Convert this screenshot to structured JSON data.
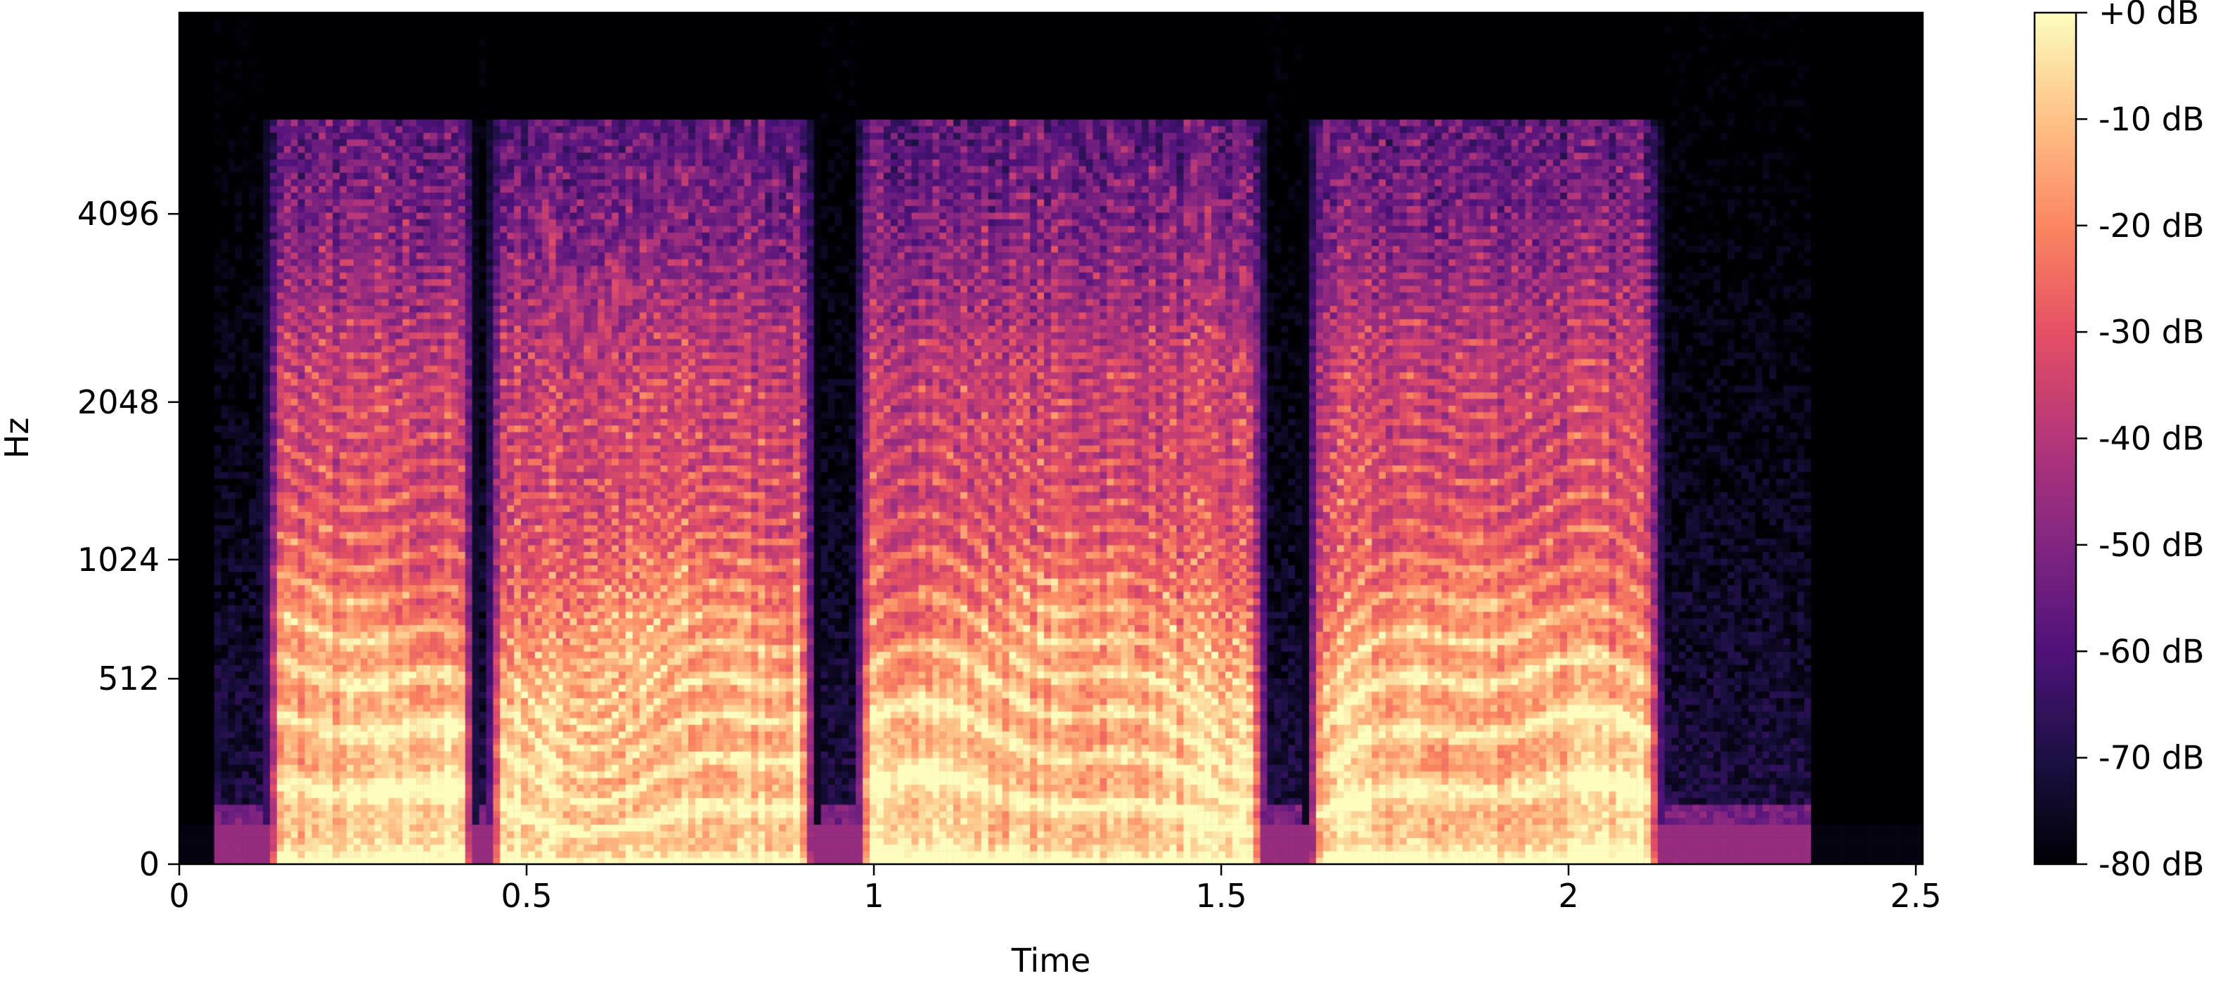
{
  "chart_data": {
    "type": "heatmap",
    "title": "",
    "xlabel": "Time",
    "ylabel": "Hz",
    "x_scale": "linear",
    "y_scale": "mel",
    "xlim": [
      0,
      2.51
    ],
    "ylim": [
      0,
      8000
    ],
    "x_ticks": [
      {
        "value": 0,
        "label": "0"
      },
      {
        "value": 0.5,
        "label": "0.5"
      },
      {
        "value": 1,
        "label": "1"
      },
      {
        "value": 1.5,
        "label": "1.5"
      },
      {
        "value": 2,
        "label": "2"
      },
      {
        "value": 2.5,
        "label": "2.5"
      }
    ],
    "y_ticks": [
      {
        "value": 0,
        "label": "0"
      },
      {
        "value": 512,
        "label": "512"
      },
      {
        "value": 1024,
        "label": "1024"
      },
      {
        "value": 2048,
        "label": "2048"
      },
      {
        "value": 4096,
        "label": "4096"
      }
    ],
    "colorbar": {
      "range": [
        -80,
        0
      ],
      "colormap": "magma",
      "ticks": [
        {
          "value": 0,
          "label": "+0 dB"
        },
        {
          "value": -10,
          "label": "-10 dB"
        },
        {
          "value": -20,
          "label": "-20 dB"
        },
        {
          "value": -30,
          "label": "-30 dB"
        },
        {
          "value": -40,
          "label": "-40 dB"
        },
        {
          "value": -50,
          "label": "-50 dB"
        },
        {
          "value": -60,
          "label": "-60 dB"
        },
        {
          "value": -70,
          "label": "-70 dB"
        },
        {
          "value": -80,
          "label": "-80 dB"
        }
      ]
    },
    "speech_segments": [
      {
        "start": 0.12,
        "end": 0.43
      },
      {
        "start": 0.44,
        "end": 0.92
      },
      {
        "start": 0.97,
        "end": 1.57
      },
      {
        "start": 1.62,
        "end": 2.14
      }
    ],
    "grid": false,
    "legend": "none"
  }
}
